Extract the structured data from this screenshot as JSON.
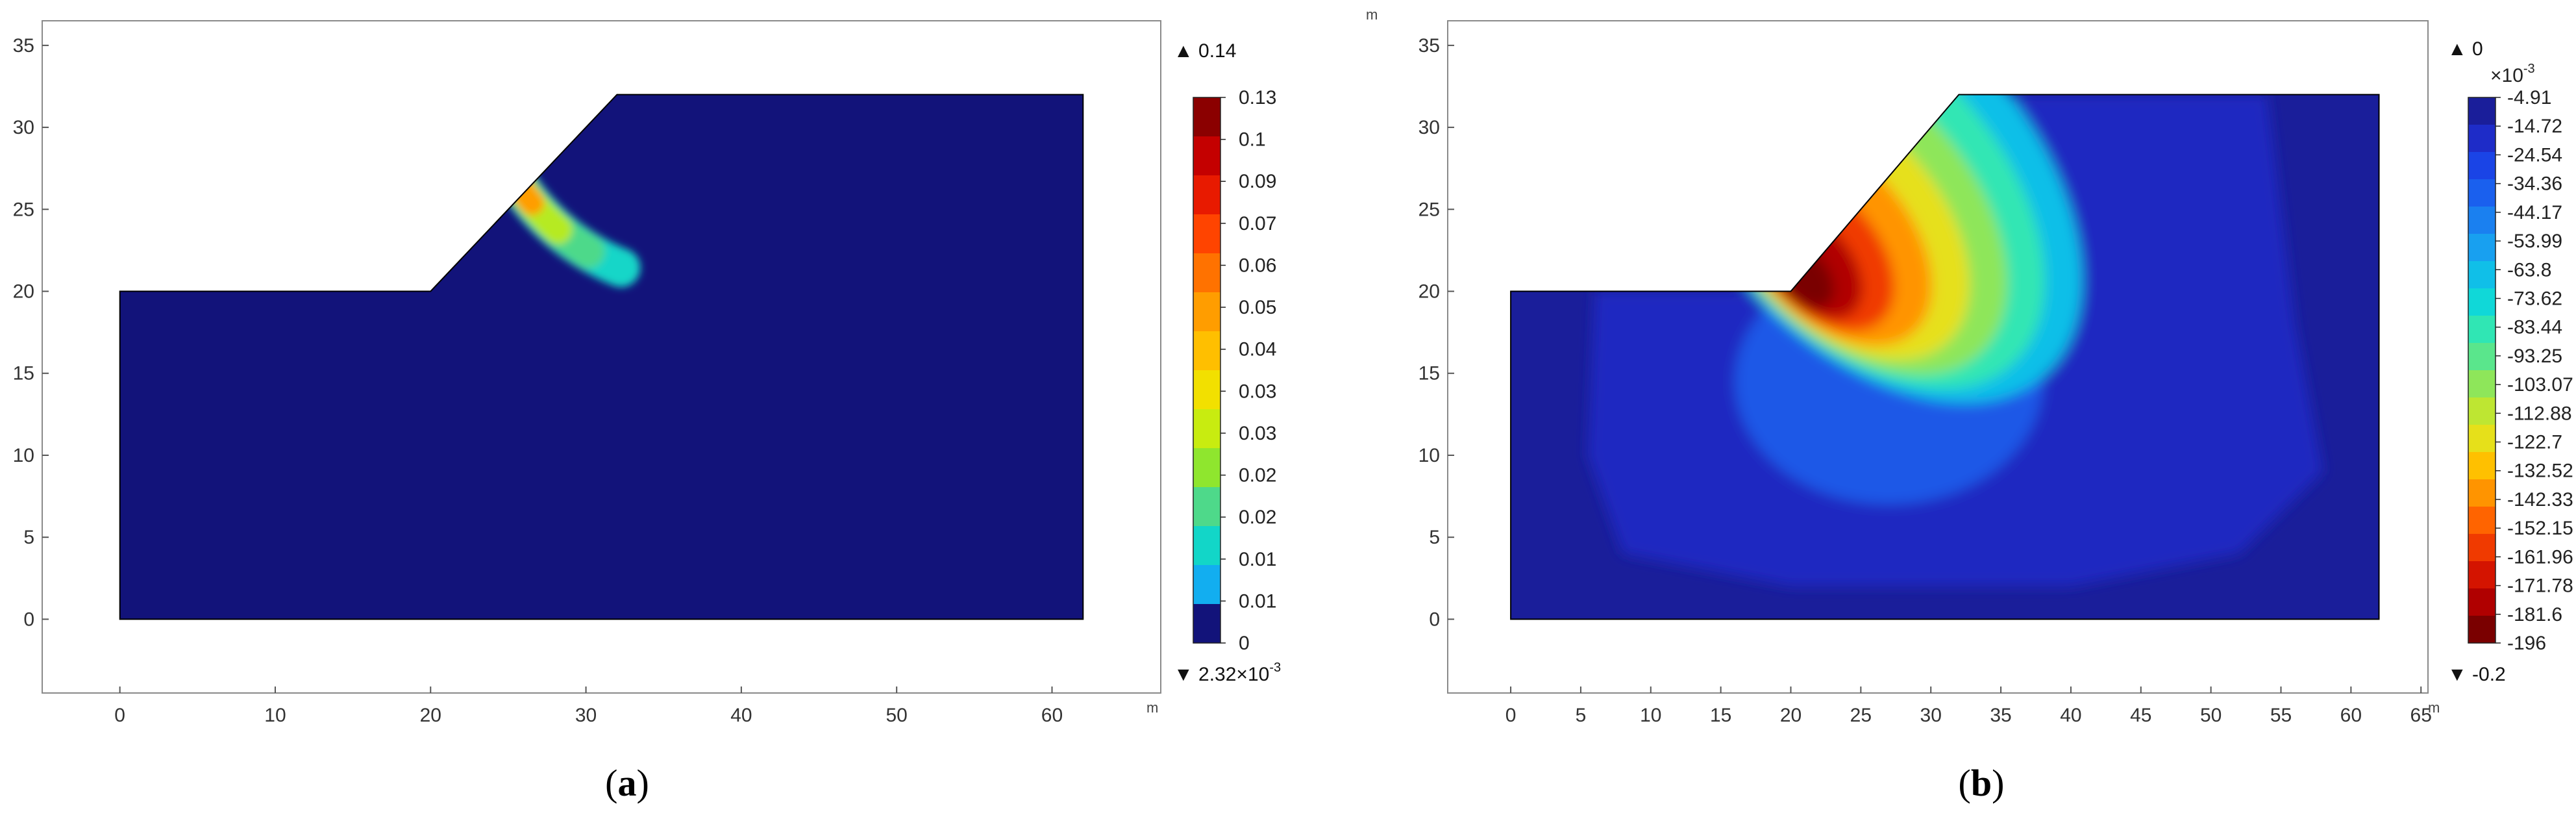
{
  "chart_data": [
    {
      "type": "heatmap",
      "panel_label": "a",
      "x_unit": "m",
      "xlim": [
        -5,
        67
      ],
      "ylim": [
        -4.5,
        36.5
      ],
      "x_ticks": [
        0,
        10,
        20,
        30,
        40,
        50,
        60
      ],
      "y_ticks": [
        0,
        5,
        10,
        15,
        20,
        25,
        30,
        35
      ],
      "domain_outline": [
        [
          0,
          0
        ],
        [
          62,
          0
        ],
        [
          62,
          32
        ],
        [
          32,
          32
        ],
        [
          20,
          20
        ],
        [
          0,
          20
        ]
      ],
      "background_color": "#12137a",
      "colorbar": {
        "max_label": "0.14",
        "min_label": "2.32×10",
        "min_label_exponent": "-3",
        "tick_labels": [
          "0.13",
          "0.1",
          "0.09",
          "0.07",
          "0.06",
          "0.05",
          "0.04",
          "0.03",
          "0.03",
          "0.02",
          "0.02",
          "0.01",
          "0.01",
          "0"
        ],
        "colors": [
          "#8b0000",
          "#c40000",
          "#e81a00",
          "#ff4400",
          "#ff7200",
          "#ff9d00",
          "#ffbf00",
          "#f2e000",
          "#c8ec10",
          "#8fe62e",
          "#4ed98a",
          "#12d6c8",
          "#12aef0",
          "#12137a"
        ]
      },
      "shear_band": {
        "inner_radius": 13.0,
        "outer_radius": 15.5,
        "center": [
          37.5,
          34.0
        ],
        "band_colors": [
          "#12d6c8",
          "#4ed98a",
          "#b6ea20",
          "#ff9d00",
          "#ff4400",
          "#c40000"
        ]
      }
    },
    {
      "type": "heatmap",
      "panel_label": "b",
      "x_unit": "m",
      "xlim": [
        -4.5,
        65.5
      ],
      "ylim": [
        -4.5,
        36.5
      ],
      "x_ticks": [
        0,
        5,
        10,
        15,
        20,
        25,
        30,
        35,
        40,
        45,
        50,
        55,
        60,
        65
      ],
      "y_ticks": [
        0,
        5,
        10,
        15,
        20,
        25,
        30,
        35
      ],
      "domain_outline": [
        [
          0,
          0
        ],
        [
          62,
          0
        ],
        [
          62,
          32
        ],
        [
          32,
          32
        ],
        [
          20,
          20
        ],
        [
          0,
          20
        ]
      ],
      "colorbar": {
        "max_label": "0",
        "min_label": "-0.2",
        "scale_label": "×10",
        "scale_exponent": "-3",
        "tick_labels": [
          "-4.91",
          "-14.72",
          "-24.54",
          "-34.36",
          "-44.17",
          "-53.99",
          "-63.8",
          "-73.62",
          "-83.44",
          "-93.25",
          "-103.07",
          "-112.88",
          "-122.7",
          "-132.52",
          "-142.33",
          "-152.15",
          "-161.96",
          "-171.78",
          "-181.6",
          "-196"
        ],
        "colors": [
          "#1a1e9a",
          "#1e2cc8",
          "#1a44e6",
          "#1a60ee",
          "#1a80f0",
          "#18a0f0",
          "#10bfe8",
          "#10d8d8",
          "#30e6b4",
          "#5ae68c",
          "#8ee65a",
          "#bee632",
          "#e6e01a",
          "#ffc000",
          "#ff9400",
          "#ff6400",
          "#f03a00",
          "#d41400",
          "#b00000",
          "#7a0000"
        ]
      }
    }
  ]
}
